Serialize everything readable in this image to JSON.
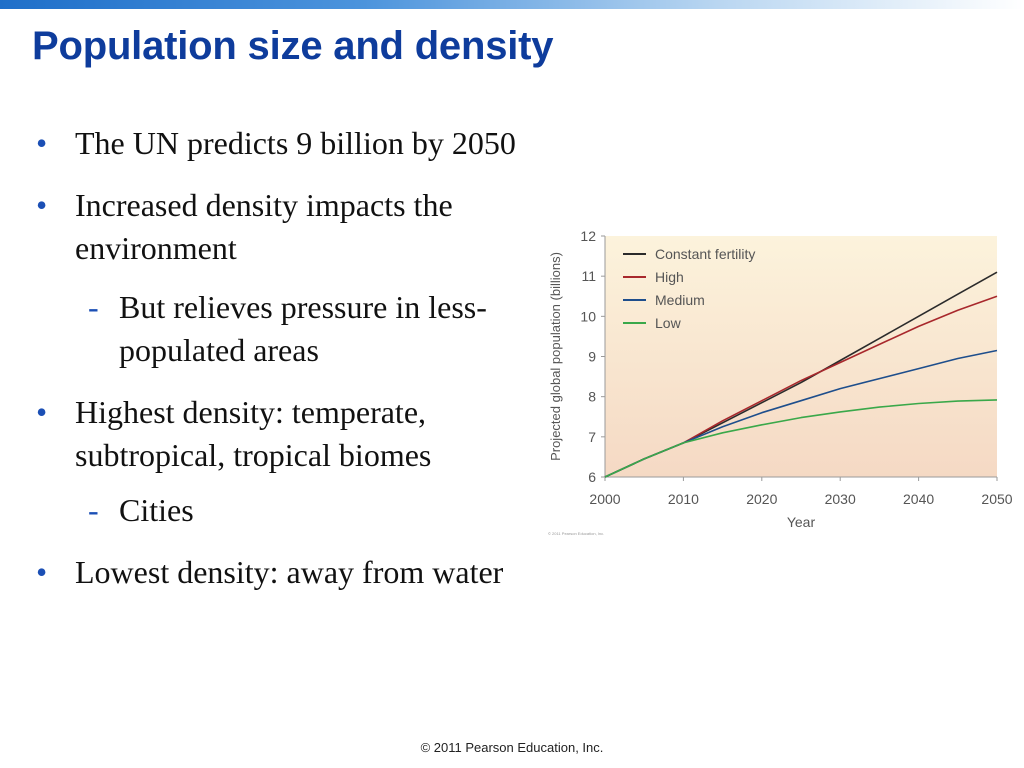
{
  "slide": {
    "title": "Population size and density",
    "bullets": [
      {
        "level": 1,
        "text": "The UN predicts 9 billion by 2050"
      },
      {
        "level": 1,
        "text": "Increased density impacts the environment"
      },
      {
        "level": 2,
        "text": "But relieves pressure in less-populated areas"
      },
      {
        "level": 1,
        "text": "Highest density: temperate, subtropical, tropical biomes"
      },
      {
        "level": 2,
        "text": "Cities"
      },
      {
        "level": 1,
        "text": "Lowest density: away from water"
      }
    ],
    "bullet_symbol": "•",
    "sub_bullet_symbol": "-",
    "footer": "© 2011 Pearson Education, Inc."
  },
  "chart_data": {
    "type": "line",
    "title": "",
    "xlabel": "Year",
    "ylabel": "Projected global population (billions)",
    "xlim": [
      2000,
      2050
    ],
    "ylim": [
      6,
      12
    ],
    "xticks": [
      2000,
      2010,
      2020,
      2030,
      2040,
      2050
    ],
    "yticks": [
      6,
      7,
      8,
      9,
      10,
      11,
      12
    ],
    "grid": false,
    "legend_position": "top-left",
    "credit": "© 2011 Pearson Education, Inc.",
    "colors": {
      "background_top": "#fcf3dc",
      "background_bottom": "#f5d9c4",
      "axis": "#9a9a9a",
      "text": "#555555"
    },
    "series": [
      {
        "name": "Constant fertility",
        "color": "#2b2b2b",
        "x": [
          2000,
          2005,
          2010,
          2015,
          2020,
          2025,
          2030,
          2035,
          2040,
          2045,
          2050
        ],
        "y": [
          6.0,
          6.45,
          6.85,
          7.35,
          7.85,
          8.35,
          8.9,
          9.45,
          10.0,
          10.55,
          11.1
        ]
      },
      {
        "name": "High",
        "color": "#a8282c",
        "x": [
          2000,
          2005,
          2010,
          2015,
          2020,
          2025,
          2030,
          2035,
          2040,
          2045,
          2050
        ],
        "y": [
          6.0,
          6.45,
          6.85,
          7.4,
          7.9,
          8.4,
          8.85,
          9.3,
          9.75,
          10.15,
          10.5
        ]
      },
      {
        "name": "Medium",
        "color": "#1e4e8c",
        "x": [
          2000,
          2005,
          2010,
          2015,
          2020,
          2025,
          2030,
          2035,
          2040,
          2045,
          2050
        ],
        "y": [
          6.0,
          6.45,
          6.85,
          7.25,
          7.6,
          7.9,
          8.2,
          8.45,
          8.7,
          8.95,
          9.15
        ]
      },
      {
        "name": "Low",
        "color": "#3aa84a",
        "x": [
          2000,
          2005,
          2010,
          2015,
          2020,
          2025,
          2030,
          2035,
          2040,
          2045,
          2050
        ],
        "y": [
          6.0,
          6.45,
          6.85,
          7.1,
          7.3,
          7.48,
          7.62,
          7.74,
          7.83,
          7.89,
          7.92
        ]
      }
    ]
  }
}
